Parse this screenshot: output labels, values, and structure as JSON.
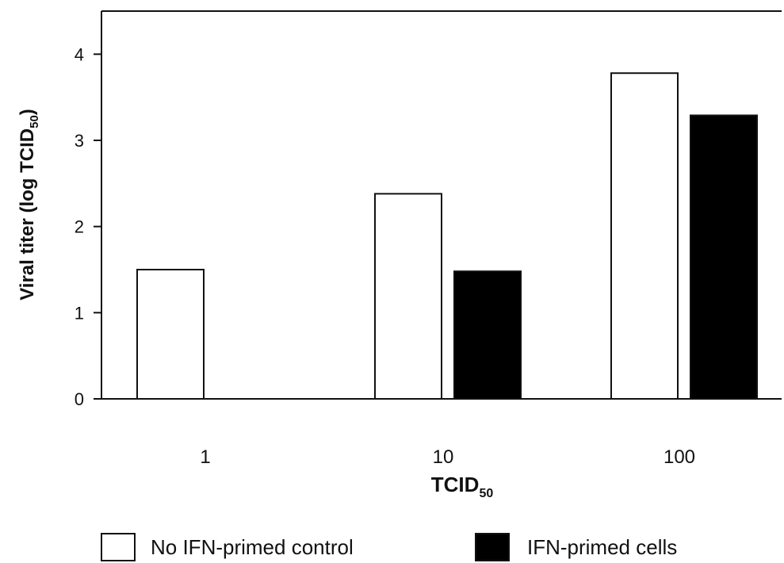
{
  "chart_data": {
    "type": "bar",
    "categories": [
      "1",
      "10",
      "100"
    ],
    "series": [
      {
        "name": "No IFN-primed control",
        "values": [
          1.5,
          2.38,
          3.78
        ],
        "fill": "#ffffff"
      },
      {
        "name": "IFN-primed cells",
        "values": [
          null,
          1.48,
          3.29
        ],
        "fill": "#000000"
      }
    ],
    "xlabel": {
      "main": "TCID",
      "sub": "50"
    },
    "ylabel": {
      "main": "Viral titer (log TCID",
      "sub": "50",
      "close": ")"
    },
    "ylim": [
      0,
      4.5
    ],
    "yticks": [
      0,
      1,
      2,
      3,
      4
    ],
    "grid": false,
    "legend_position": "bottom"
  }
}
